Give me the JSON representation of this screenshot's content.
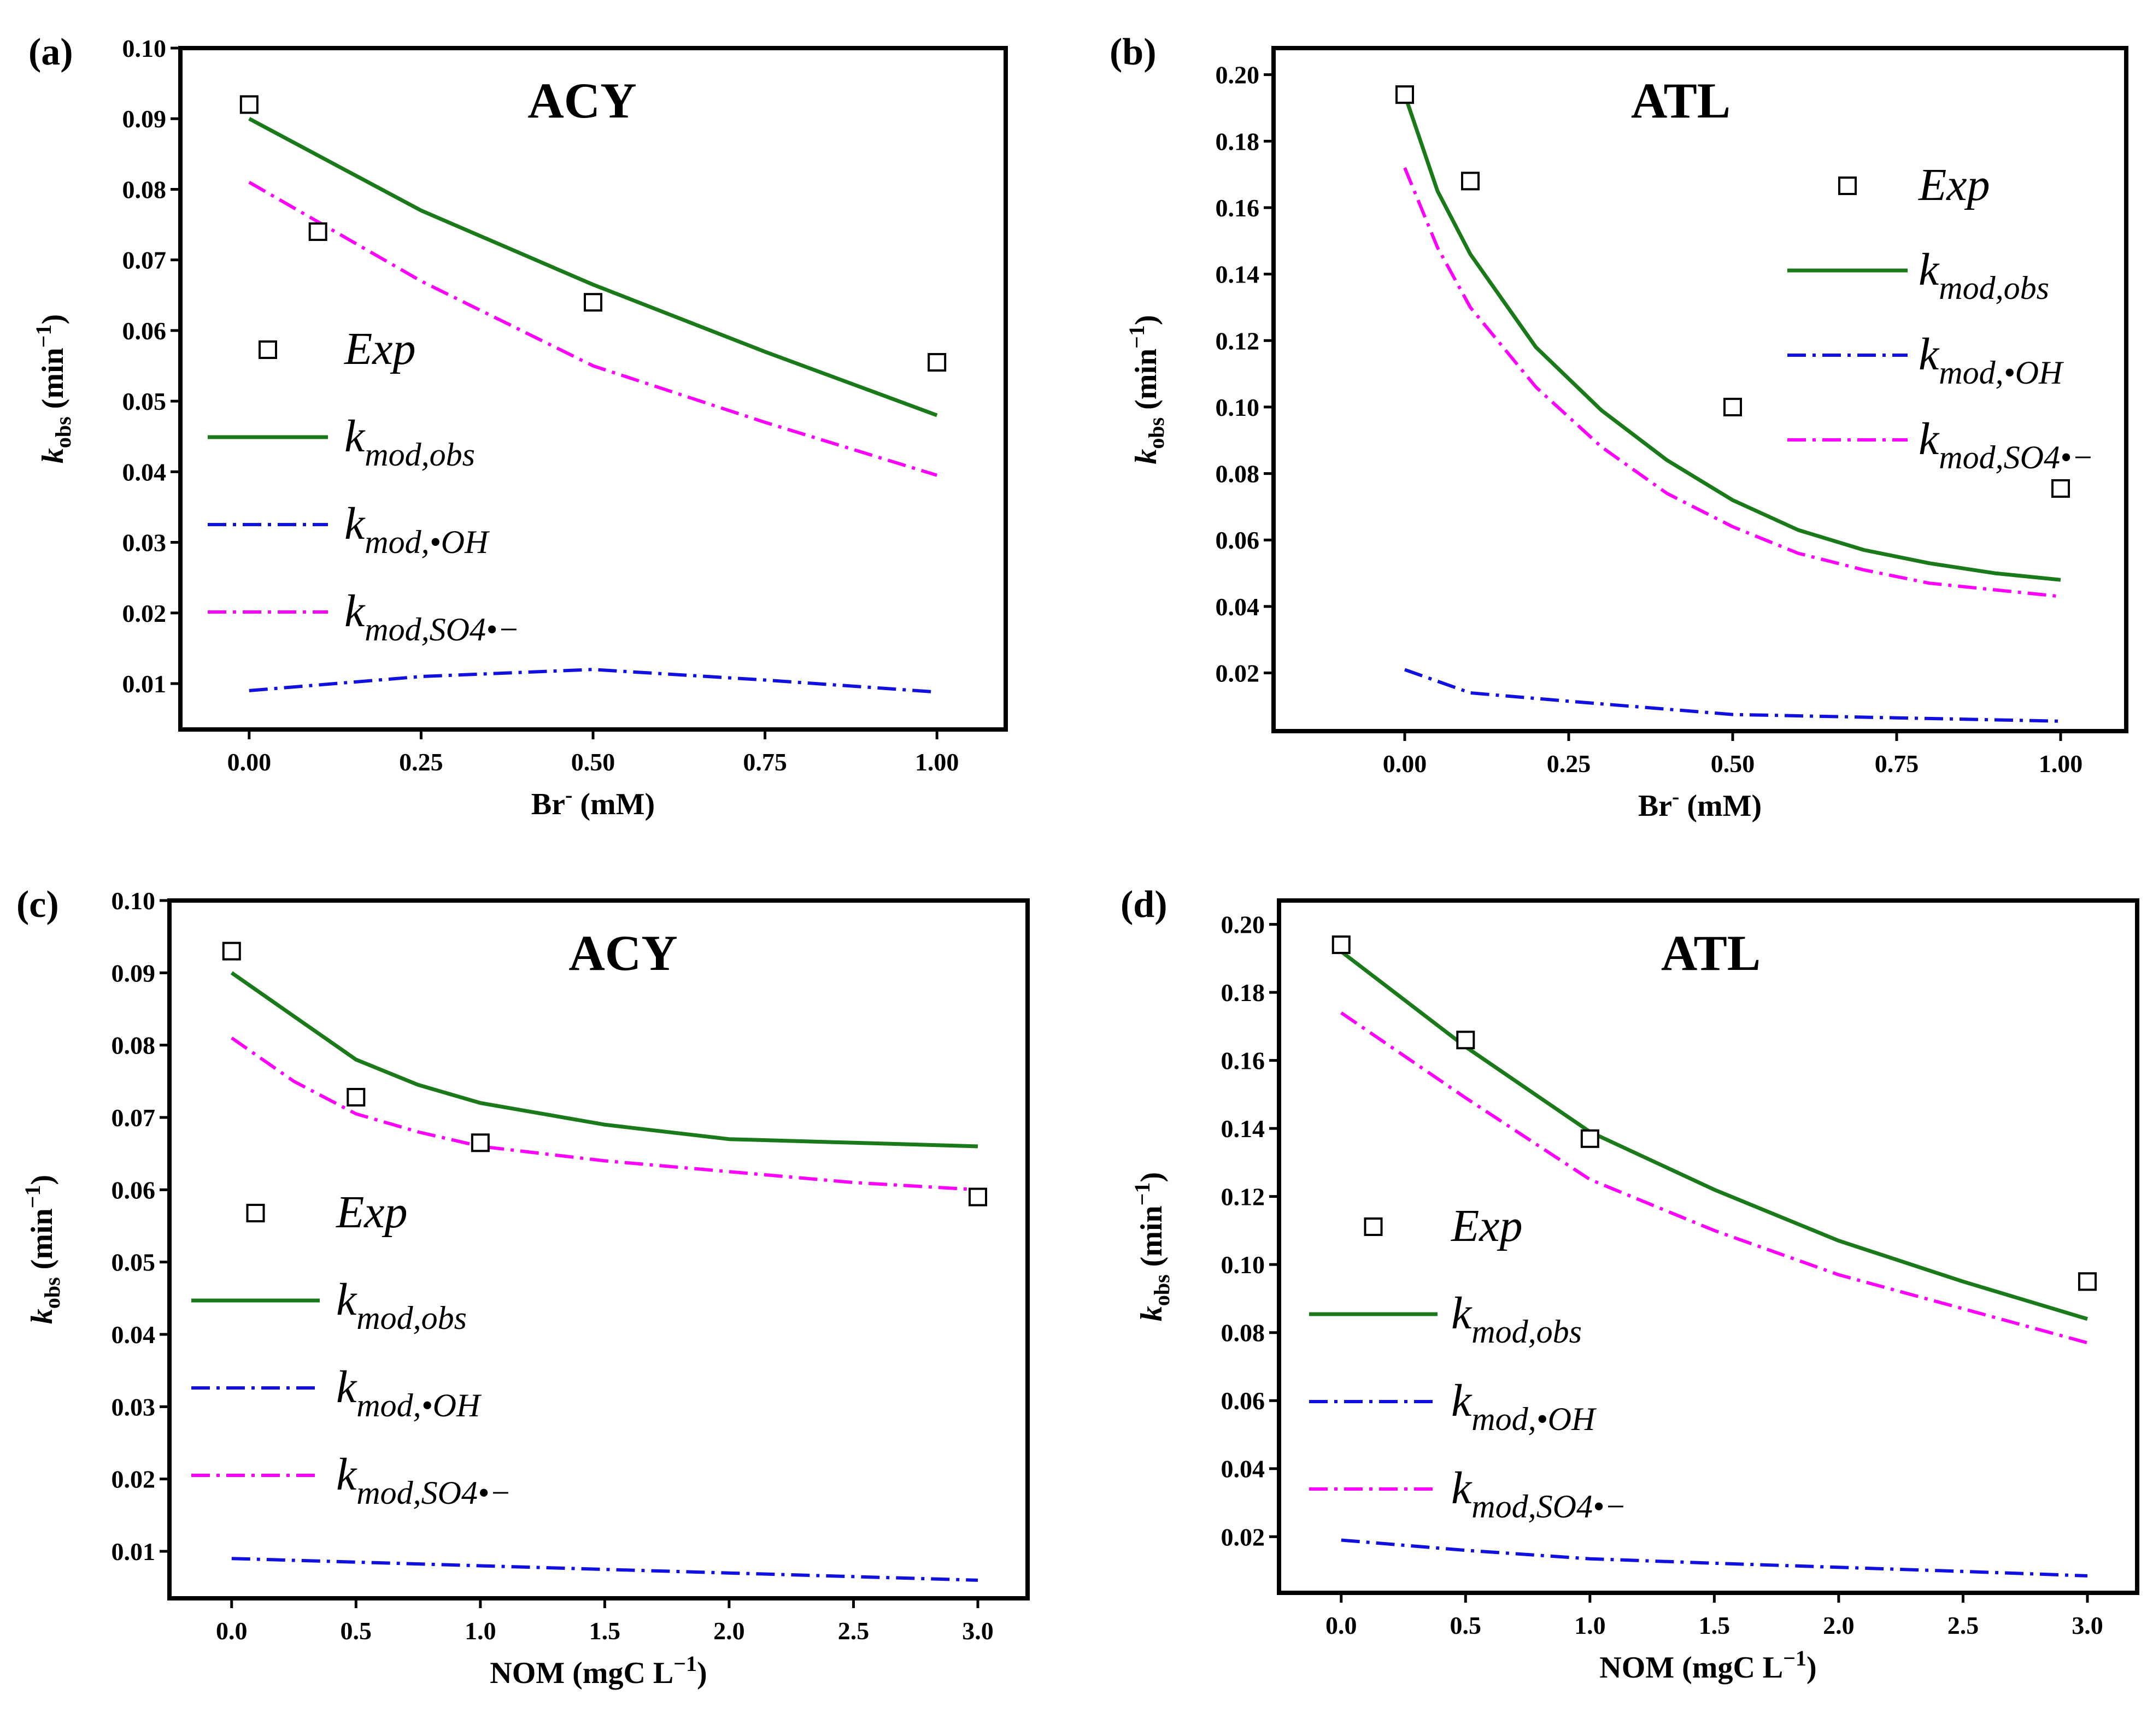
{
  "colors": {
    "exp": "#000000",
    "obs": "#1a7a1a",
    "oh": "#1010e0",
    "so4": "#ff00ff"
  },
  "chart_data": [
    {
      "panel": "(a)",
      "type": "line",
      "title": "ACY",
      "xlabel": "Br⁻ (mM)",
      "xlabel_main": "Br",
      "xlabel_sup": "-",
      "xlabel_unit": " (mM)",
      "ylabel_main": "k",
      "ylabel_sub": "obs",
      "ylabel_unit": " (min",
      "ylabel_sup": "−1",
      "ylabel_close": ")",
      "xlim": [
        -0.1,
        1.1
      ],
      "ylim": [
        0.0035,
        0.1
      ],
      "xticks": [
        0.0,
        0.25,
        0.5,
        0.75,
        1.0
      ],
      "xtick_labels": [
        "0.00",
        "0.25",
        "0.50",
        "0.75",
        "1.00"
      ],
      "yticks": [
        0.01,
        0.02,
        0.03,
        0.04,
        0.05,
        0.06,
        0.07,
        0.08,
        0.09,
        0.1
      ],
      "ytick_labels": [
        "0.01",
        "0.02",
        "0.03",
        "0.04",
        "0.05",
        "0.06",
        "0.07",
        "0.08",
        "0.09",
        "0.10"
      ],
      "legend_position": "left-middle",
      "series": [
        {
          "name": "Exp",
          "style": "markers",
          "x": [
            0,
            0.1,
            0.5,
            1.0
          ],
          "y": [
            0.092,
            0.074,
            0.064,
            0.0555
          ]
        },
        {
          "name": "kmod,obs",
          "style": "solid",
          "x": [
            0,
            0.25,
            0.5,
            0.75,
            1.0
          ],
          "y": [
            0.09,
            0.077,
            0.0665,
            0.057,
            0.048
          ]
        },
        {
          "name": "kmod,•OH",
          "style": "dashdot-blue",
          "x": [
            0,
            0.25,
            0.5,
            0.75,
            1.0
          ],
          "y": [
            0.009,
            0.011,
            0.012,
            0.0105,
            0.0088
          ]
        },
        {
          "name": "kmod,SO4•−",
          "style": "dashdot-magenta",
          "x": [
            0,
            0.25,
            0.5,
            0.75,
            1.0
          ],
          "y": [
            0.081,
            0.067,
            0.055,
            0.047,
            0.0395
          ]
        }
      ],
      "legend_labels": [
        {
          "main": "Exp",
          "sub": ""
        },
        {
          "main": "k",
          "sub": "mod,obs"
        },
        {
          "main": "k",
          "sub": "mod,•OH"
        },
        {
          "main": "k",
          "sub": "mod,SO4•−"
        }
      ]
    },
    {
      "panel": "(b)",
      "type": "line",
      "title": "ATL",
      "xlabel": "Br⁻ (mM)",
      "xlabel_main": "Br",
      "xlabel_sup": "-",
      "xlabel_unit": " (mM)",
      "ylabel_main": "k",
      "ylabel_sub": "obs",
      "ylabel_unit": " (min",
      "ylabel_sup": "−1",
      "ylabel_close": ")",
      "xlim": [
        -0.2,
        1.1
      ],
      "ylim": [
        0.0025,
        0.208
      ],
      "xticks": [
        0.0,
        0.25,
        0.5,
        0.75,
        1.0
      ],
      "xtick_labels": [
        "0.00",
        "0.25",
        "0.50",
        "0.75",
        "1.00"
      ],
      "yticks": [
        0.02,
        0.04,
        0.06,
        0.08,
        0.1,
        0.12,
        0.14,
        0.16,
        0.18,
        0.2
      ],
      "ytick_labels": [
        "0.02",
        "0.04",
        "0.06",
        "0.08",
        "0.10",
        "0.12",
        "0.14",
        "0.16",
        "0.18",
        "0.20"
      ],
      "legend_position": "top-right",
      "series": [
        {
          "name": "Exp",
          "style": "markers",
          "x": [
            0,
            0.1,
            0.5,
            1.0
          ],
          "y": [
            0.194,
            0.168,
            0.1,
            0.0755
          ]
        },
        {
          "name": "kmod,obs",
          "style": "solid",
          "x": [
            0,
            0.05,
            0.1,
            0.2,
            0.3,
            0.4,
            0.5,
            0.6,
            0.7,
            0.8,
            0.9,
            1.0
          ],
          "y": [
            0.194,
            0.165,
            0.146,
            0.118,
            0.099,
            0.084,
            0.072,
            0.063,
            0.057,
            0.053,
            0.05,
            0.048
          ]
        },
        {
          "name": "kmod,•OH",
          "style": "dashdot-blue",
          "x": [
            0,
            0.1,
            0.25,
            0.5,
            0.75,
            1.0
          ],
          "y": [
            0.021,
            0.014,
            0.0115,
            0.0075,
            0.0065,
            0.0055
          ]
        },
        {
          "name": "kmod,SO4•−",
          "style": "dashdot-magenta",
          "x": [
            0,
            0.05,
            0.1,
            0.2,
            0.3,
            0.4,
            0.5,
            0.6,
            0.7,
            0.8,
            0.9,
            1.0
          ],
          "y": [
            0.172,
            0.148,
            0.13,
            0.106,
            0.088,
            0.074,
            0.064,
            0.056,
            0.051,
            0.047,
            0.045,
            0.043
          ]
        }
      ],
      "legend_labels": [
        {
          "main": "Exp",
          "sub": ""
        },
        {
          "main": "k",
          "sub": "mod,obs"
        },
        {
          "main": "k",
          "sub": "mod,•OH"
        },
        {
          "main": "k",
          "sub": "mod,SO4•−"
        }
      ]
    },
    {
      "panel": "(c)",
      "type": "line",
      "title": "ACY",
      "xlabel": "NOM (mgC L⁻¹)",
      "xlabel_main": "NOM",
      "xlabel_sup": "",
      "xlabel_unit": " (mgC L",
      "xlabel_unit_sup": "−1",
      "xlabel_unit_close": ")",
      "ylabel_main": "k",
      "ylabel_sub": "obs",
      "ylabel_unit": " (min",
      "ylabel_sup": "−1",
      "ylabel_close": ")",
      "xlim": [
        -0.25,
        3.2
      ],
      "ylim": [
        0.0035,
        0.1
      ],
      "xticks": [
        0.0,
        0.5,
        1.0,
        1.5,
        2.0,
        2.5,
        3.0
      ],
      "xtick_labels": [
        "0.0",
        "0.5",
        "1.0",
        "1.5",
        "2.0",
        "2.5",
        "3.0"
      ],
      "yticks": [
        0.01,
        0.02,
        0.03,
        0.04,
        0.05,
        0.06,
        0.07,
        0.08,
        0.09,
        0.1
      ],
      "ytick_labels": [
        "0.01",
        "0.02",
        "0.03",
        "0.04",
        "0.05",
        "0.06",
        "0.07",
        "0.08",
        "0.09",
        "0.10"
      ],
      "legend_position": "left-middle",
      "series": [
        {
          "name": "Exp",
          "style": "markers",
          "x": [
            0,
            0.5,
            1.0,
            3.0
          ],
          "y": [
            0.093,
            0.0728,
            0.0665,
            0.059
          ]
        },
        {
          "name": "kmod,obs",
          "style": "solid",
          "x": [
            0,
            0.25,
            0.5,
            0.75,
            1.0,
            1.5,
            2.0,
            2.5,
            3.0
          ],
          "y": [
            0.09,
            0.084,
            0.078,
            0.0745,
            0.072,
            0.069,
            0.067,
            0.0665,
            0.066
          ]
        },
        {
          "name": "kmod,•OH",
          "style": "dashdot-blue",
          "x": [
            0,
            0.5,
            1.0,
            1.5,
            2.0,
            2.5,
            3.0
          ],
          "y": [
            0.009,
            0.0085,
            0.008,
            0.0075,
            0.007,
            0.0065,
            0.006
          ]
        },
        {
          "name": "kmod,SO4•−",
          "style": "dashdot-magenta",
          "x": [
            0,
            0.25,
            0.5,
            0.75,
            1.0,
            1.5,
            2.0,
            2.5,
            3.0
          ],
          "y": [
            0.081,
            0.075,
            0.0705,
            0.068,
            0.066,
            0.064,
            0.0625,
            0.061,
            0.06
          ]
        }
      ],
      "legend_labels": [
        {
          "main": "Exp",
          "sub": ""
        },
        {
          "main": "k",
          "sub": "mod,obs"
        },
        {
          "main": "k",
          "sub": "mod,•OH"
        },
        {
          "main": "k",
          "sub": "mod,SO4•−"
        }
      ]
    },
    {
      "panel": "(d)",
      "type": "line",
      "title": "ATL",
      "xlabel": "NOM (mgC L⁻¹)",
      "xlabel_main": "NOM",
      "xlabel_sup": "",
      "xlabel_unit": " (mgC L",
      "xlabel_unit_sup": "−1",
      "xlabel_unit_close": ")",
      "ylabel_main": "k",
      "ylabel_sub": "obs",
      "ylabel_unit": " (min",
      "ylabel_sup": "−1",
      "ylabel_close": ")",
      "xlim": [
        -0.25,
        3.2
      ],
      "ylim": [
        0.0035,
        0.207
      ],
      "xticks": [
        0.0,
        0.5,
        1.0,
        1.5,
        2.0,
        2.5,
        3.0
      ],
      "xtick_labels": [
        "0.0",
        "0.5",
        "1.0",
        "1.5",
        "2.0",
        "2.5",
        "3.0"
      ],
      "yticks": [
        0.02,
        0.04,
        0.06,
        0.08,
        0.1,
        0.12,
        0.14,
        0.16,
        0.18,
        0.2
      ],
      "ytick_labels": [
        "0.02",
        "0.04",
        "0.06",
        "0.08",
        "0.10",
        "0.12",
        "0.14",
        "0.16",
        "0.18",
        "0.20"
      ],
      "legend_position": "left-middle",
      "series": [
        {
          "name": "Exp",
          "style": "markers",
          "x": [
            0,
            0.5,
            1.0,
            3.0
          ],
          "y": [
            0.194,
            0.166,
            0.137,
            0.095
          ]
        },
        {
          "name": "kmod,obs",
          "style": "solid",
          "x": [
            0,
            0.5,
            1.0,
            1.5,
            2.0,
            2.5,
            3.0
          ],
          "y": [
            0.192,
            0.164,
            0.139,
            0.122,
            0.107,
            0.095,
            0.084
          ]
        },
        {
          "name": "kmod,•OH",
          "style": "dashdot-blue",
          "x": [
            0,
            0.5,
            1.0,
            1.5,
            2.0,
            2.5,
            3.0
          ],
          "y": [
            0.019,
            0.016,
            0.0135,
            0.0122,
            0.011,
            0.0098,
            0.0085
          ]
        },
        {
          "name": "kmod,SO4•−",
          "style": "dashdot-magenta",
          "x": [
            0,
            0.5,
            1.0,
            1.5,
            2.0,
            2.5,
            3.0
          ],
          "y": [
            0.174,
            0.149,
            0.125,
            0.11,
            0.097,
            0.087,
            0.077
          ]
        }
      ],
      "legend_labels": [
        {
          "main": "Exp",
          "sub": ""
        },
        {
          "main": "k",
          "sub": "mod,obs"
        },
        {
          "main": "k",
          "sub": "mod,•OH"
        },
        {
          "main": "k",
          "sub": "mod,SO4•−"
        }
      ]
    }
  ]
}
